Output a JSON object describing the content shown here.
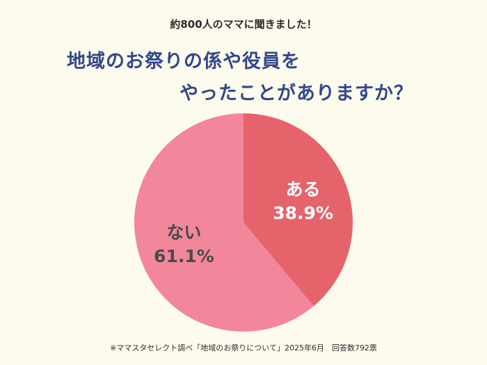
{
  "header": {
    "subtitle": "約800人のママに聞きました！",
    "title_line1": "地域のお祭りの係や役員を",
    "title_line2": "やったことがありますか？"
  },
  "footnote": "※ママスタセレクト調べ「地域のお祭りについて」2025年6月　回答数792票",
  "chart_data": {
    "type": "pie",
    "slices": [
      {
        "label": "ある",
        "value": 38.9,
        "display": "38.9%",
        "color": "#e5646c",
        "text_color": "#ffffff"
      },
      {
        "label": "ない",
        "value": 61.1,
        "display": "61.1%",
        "color": "#f2879c",
        "text_color": "#4a4a4a"
      }
    ],
    "start": "12 o'clock",
    "direction": "clockwise"
  }
}
